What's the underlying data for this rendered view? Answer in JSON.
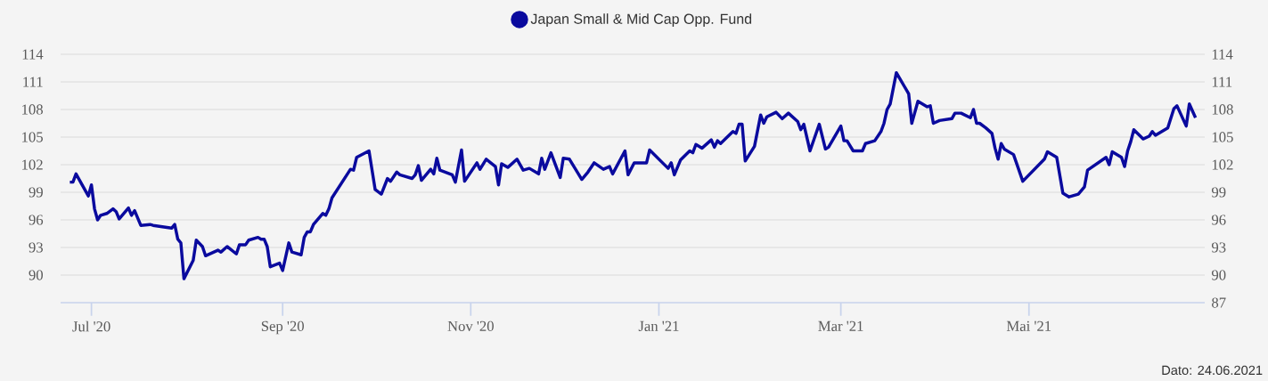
{
  "chart_data": {
    "type": "line",
    "x": [
      "2020-06-24",
      "2020-06-25",
      "2020-06-26",
      "2020-06-30",
      "2020-07-01",
      "2020-07-02",
      "2020-07-03",
      "2020-07-04",
      "2020-07-06",
      "2020-07-08",
      "2020-07-09",
      "2020-07-10",
      "2020-07-13",
      "2020-07-14",
      "2020-07-15",
      "2020-07-17",
      "2020-07-20",
      "2020-07-21",
      "2020-07-27",
      "2020-07-28",
      "2020-07-29",
      "2020-07-30",
      "2020-07-31",
      "2020-08-03",
      "2020-08-04",
      "2020-08-06",
      "2020-08-07",
      "2020-08-11",
      "2020-08-12",
      "2020-08-14",
      "2020-08-17",
      "2020-08-18",
      "2020-08-20",
      "2020-08-21",
      "2020-08-24",
      "2020-08-25",
      "2020-08-26",
      "2020-08-27",
      "2020-08-28",
      "2020-08-31",
      "2020-09-01",
      "2020-09-03",
      "2020-09-04",
      "2020-09-07",
      "2020-09-08",
      "2020-09-09",
      "2020-09-10",
      "2020-09-11",
      "2020-09-14",
      "2020-09-15",
      "2020-09-16",
      "2020-09-17",
      "2020-09-23",
      "2020-09-24",
      "2020-09-25",
      "2020-09-29",
      "2020-10-01",
      "2020-10-03",
      "2020-10-05",
      "2020-10-06",
      "2020-10-08",
      "2020-10-09",
      "2020-10-13",
      "2020-10-14",
      "2020-10-15",
      "2020-10-16",
      "2020-10-19",
      "2020-10-20",
      "2020-10-21",
      "2020-10-22",
      "2020-10-26",
      "2020-10-27",
      "2020-10-29",
      "2020-10-30",
      "2020-11-03",
      "2020-11-04",
      "2020-11-06",
      "2020-11-09",
      "2020-11-10",
      "2020-11-11",
      "2020-11-13",
      "2020-11-16",
      "2020-11-18",
      "2020-11-20",
      "2020-11-23",
      "2020-11-24",
      "2020-11-25",
      "2020-11-27",
      "2020-11-30",
      "2020-12-01",
      "2020-12-03",
      "2020-12-07",
      "2020-12-09",
      "2020-12-11",
      "2020-12-14",
      "2020-12-16",
      "2020-12-17",
      "2020-12-21",
      "2020-12-22",
      "2020-12-24",
      "2020-12-28",
      "2020-12-29",
      "2021-01-04",
      "2021-01-05",
      "2021-01-06",
      "2021-01-08",
      "2021-01-11",
      "2021-01-12",
      "2021-01-13",
      "2021-01-15",
      "2021-01-18",
      "2021-01-19",
      "2021-01-20",
      "2021-01-21",
      "2021-01-25",
      "2021-01-26",
      "2021-01-27",
      "2021-01-28",
      "2021-01-29",
      "2021-02-01",
      "2021-02-03",
      "2021-02-04",
      "2021-02-05",
      "2021-02-08",
      "2021-02-10",
      "2021-02-12",
      "2021-02-15",
      "2021-02-16",
      "2021-02-17",
      "2021-02-19",
      "2021-02-22",
      "2021-02-24",
      "2021-02-25",
      "2021-03-01",
      "2021-03-02",
      "2021-03-03",
      "2021-03-05",
      "2021-03-08",
      "2021-03-09",
      "2021-03-12",
      "2021-03-14",
      "2021-03-15",
      "2021-03-16",
      "2021-03-17",
      "2021-03-19",
      "2021-03-23",
      "2021-03-24",
      "2021-03-26",
      "2021-03-29",
      "2021-03-30",
      "2021-03-31",
      "2021-04-02",
      "2021-04-06",
      "2021-04-07",
      "2021-04-09",
      "2021-04-12",
      "2021-04-13",
      "2021-04-14",
      "2021-04-15",
      "2021-04-17",
      "2021-04-19",
      "2021-04-20",
      "2021-04-21",
      "2021-04-22",
      "2021-04-23",
      "2021-04-26",
      "2021-04-29",
      "2021-05-06",
      "2021-05-07",
      "2021-05-10",
      "2021-05-12",
      "2021-05-14",
      "2021-05-17",
      "2021-05-19",
      "2021-05-20",
      "2021-05-26",
      "2021-05-27",
      "2021-05-28",
      "2021-05-31",
      "2021-06-01",
      "2021-06-02",
      "2021-06-03",
      "2021-06-04",
      "2021-06-07",
      "2021-06-09",
      "2021-06-10",
      "2021-06-11",
      "2021-06-15",
      "2021-06-17",
      "2021-06-18",
      "2021-06-21",
      "2021-06-22",
      "2021-06-24"
    ],
    "series": [
      {
        "name": "Japan Small & Mid Cap Opp. Fund",
        "color": "#0a0a9e",
        "values": [
          100.1,
          100.1,
          101.0,
          98.6,
          99.8,
          97.2,
          96.0,
          96.5,
          96.7,
          97.2,
          96.9,
          96.1,
          97.3,
          96.5,
          97.0,
          95.4,
          95.5,
          95.4,
          95.1,
          95.5,
          93.9,
          93.5,
          89.6,
          91.6,
          93.8,
          93.1,
          92.1,
          92.7,
          92.5,
          93.1,
          92.3,
          93.3,
          93.3,
          93.8,
          94.1,
          93.9,
          93.9,
          93.1,
          90.9,
          91.3,
          90.5,
          93.5,
          92.5,
          92.2,
          94.1,
          94.7,
          94.7,
          95.5,
          96.7,
          96.5,
          97.2,
          98.4,
          101.5,
          101.4,
          102.8,
          103.5,
          99.3,
          98.8,
          100.5,
          100.2,
          101.2,
          100.9,
          100.5,
          100.9,
          101.9,
          100.3,
          101.5,
          101.0,
          102.7,
          101.4,
          100.9,
          100.1,
          103.6,
          100.2,
          102.2,
          101.5,
          102.6,
          101.8,
          99.8,
          102.1,
          101.7,
          102.6,
          101.4,
          101.6,
          101.0,
          102.7,
          101.5,
          103.3,
          100.6,
          102.7,
          102.6,
          100.4,
          101.2,
          102.2,
          101.5,
          101.8,
          101.0,
          103.5,
          100.9,
          102.2,
          102.2,
          103.6,
          101.6,
          102.2,
          100.9,
          102.5,
          103.5,
          103.3,
          104.2,
          103.8,
          104.7,
          103.9,
          104.6,
          104.3,
          105.6,
          105.4,
          106.4,
          106.4,
          102.4,
          104.0,
          107.4,
          106.5,
          107.2,
          107.7,
          107.0,
          107.6,
          106.7,
          105.8,
          106.4,
          103.5,
          106.4,
          103.7,
          103.9,
          106.2,
          104.6,
          104.6,
          103.5,
          103.5,
          104.3,
          104.6,
          105.6,
          106.5,
          108.0,
          108.6,
          112.0,
          109.7,
          106.5,
          108.9,
          108.3,
          108.4,
          106.5,
          106.8,
          107.0,
          107.6,
          107.6,
          107.1,
          108.0,
          106.5,
          106.5,
          106.0,
          105.4,
          103.8,
          102.6,
          104.3,
          103.7,
          103.1,
          100.2,
          102.6,
          103.4,
          102.8,
          98.9,
          98.5,
          98.8,
          99.6,
          101.4,
          102.8,
          102.0,
          103.4,
          102.8,
          101.8,
          103.5,
          104.5,
          105.8,
          104.8,
          105.1,
          105.6,
          105.2,
          106.0,
          108.1,
          108.4,
          106.2,
          108.6,
          107.1
        ]
      }
    ],
    "xlim": [
      "2020-06-21",
      "2021-06-27"
    ],
    "xticks": [
      {
        "value": "2020-07-01",
        "label": "Jul '20"
      },
      {
        "value": "2020-09-01",
        "label": "Sep '20"
      },
      {
        "value": "2020-11-01",
        "label": "Nov '20"
      },
      {
        "value": "2021-01-01",
        "label": "Jan '21"
      },
      {
        "value": "2021-03-01",
        "label": "Mar '21"
      },
      {
        "value": "2021-05-01",
        "label": "Mai '21"
      }
    ],
    "ylim": [
      87,
      114
    ],
    "yticks": [
      90,
      93,
      96,
      99,
      102,
      105,
      108,
      111,
      114
    ],
    "y2lim": [
      87,
      114
    ],
    "y2ticks": [
      87,
      90,
      93,
      96,
      99,
      102,
      105,
      108,
      111,
      114
    ],
    "grid": "y",
    "legend": "top",
    "marker": "none",
    "line_style": "solid",
    "annotations": [
      "Dato: 24.06.2021"
    ]
  }
}
